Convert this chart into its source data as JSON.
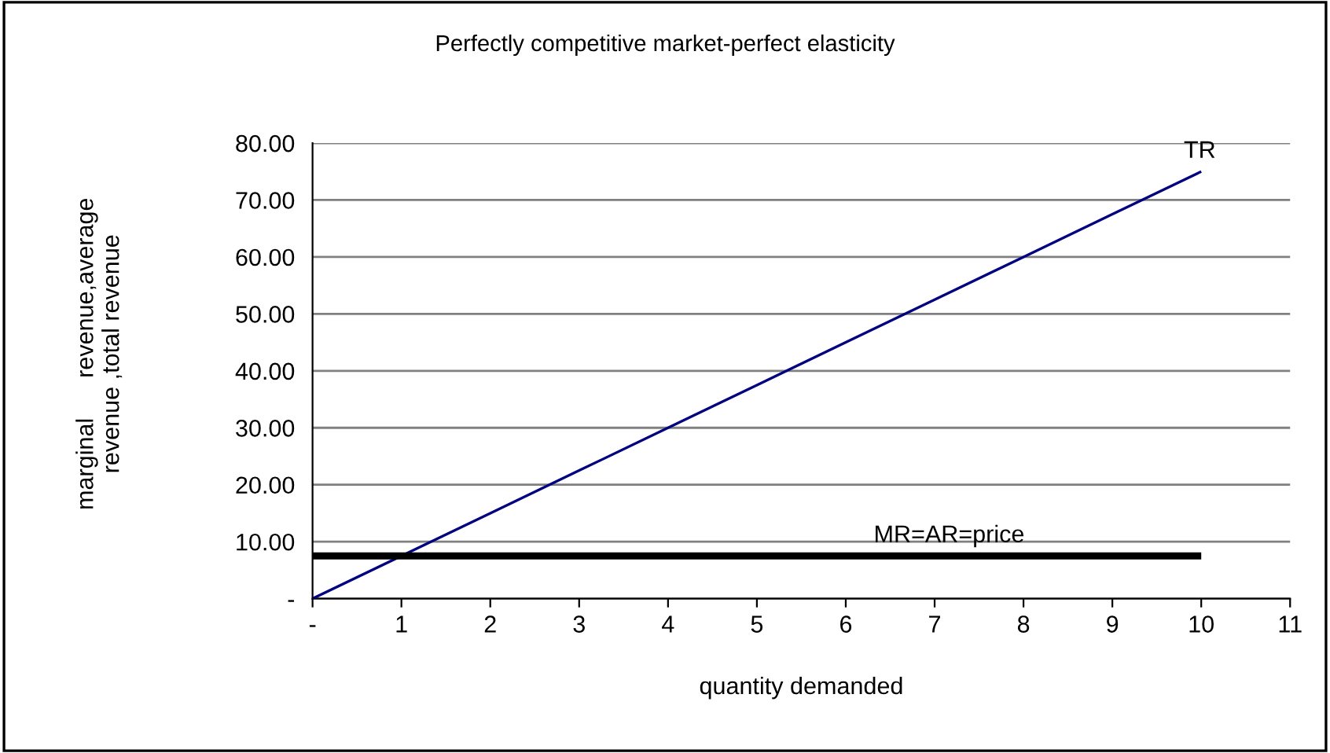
{
  "chart_data": {
    "type": "line",
    "title": "Perfectly competitive market-perfect elasticity",
    "xlabel": "quantity demanded",
    "ylabel": "marginal      revenue,average\nrevenue ,total revenue",
    "x": [
      0,
      1,
      2,
      3,
      4,
      5,
      6,
      7,
      8,
      9,
      10
    ],
    "series": [
      {
        "name": "TR",
        "color": "#000080",
        "values": [
          0,
          7.5,
          15,
          22.5,
          30,
          37.5,
          45,
          52.5,
          60,
          67.5,
          75
        ]
      },
      {
        "name": "MR=AR=price",
        "color": "#000000",
        "values": [
          7.5,
          7.5,
          7.5,
          7.5,
          7.5,
          7.5,
          7.5,
          7.5,
          7.5,
          7.5,
          7.5
        ]
      }
    ],
    "xlim": [
      0,
      11
    ],
    "xticks": [
      {
        "value": 0,
        "label": "-"
      },
      1,
      2,
      3,
      4,
      5,
      6,
      7,
      8,
      9,
      10,
      11
    ],
    "ylim": [
      0,
      80
    ],
    "yticks": [
      {
        "value": 0,
        "label": "-"
      },
      {
        "value": 10,
        "label": "10.00"
      },
      {
        "value": 20,
        "label": "20.00"
      },
      {
        "value": 30,
        "label": "30.00"
      },
      {
        "value": 40,
        "label": "40.00"
      },
      {
        "value": 50,
        "label": "50.00"
      },
      {
        "value": 60,
        "label": "60.00"
      },
      {
        "value": 70,
        "label": "70.00"
      },
      {
        "value": 80,
        "label": "80.00"
      }
    ],
    "grid": "y",
    "legend": false,
    "marker": "none",
    "line_style": "solid"
  }
}
